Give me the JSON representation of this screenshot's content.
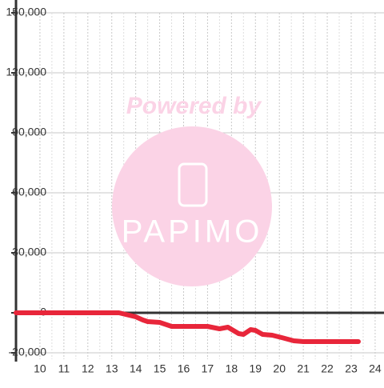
{
  "chart_data": {
    "type": "line",
    "watermark": {
      "title": "Powered by",
      "logo": "PAPIMO"
    },
    "x": [
      9,
      13.3,
      14,
      14.3,
      14.5,
      15,
      15.2,
      15.5,
      17,
      17.5,
      17.85,
      18.3,
      18.5,
      18.8,
      19,
      19.3,
      19.7,
      20.1,
      20.6,
      21,
      23.3
    ],
    "series": [
      {
        "color": "#e8263a",
        "values": [
          0,
          0,
          -2000,
          -3600,
          -4400,
          -4800,
          -5600,
          -6800,
          -6800,
          -8000,
          -7200,
          -10400,
          -10800,
          -8400,
          -8800,
          -10800,
          -11200,
          -12400,
          -14000,
          -14400,
          -14400
        ]
      }
    ],
    "xlim": [
      9,
      24.37
    ],
    "xticks": [
      10,
      11,
      12,
      13,
      14,
      15,
      16,
      17,
      18,
      19,
      20,
      21,
      22,
      23,
      24
    ],
    "ylim": [
      -20000,
      150000
    ],
    "yticks": [
      {
        "value": -20000,
        "label": "-20,000"
      },
      0,
      {
        "value": 30000,
        "label": "30,000"
      },
      {
        "value": 60000,
        "label": "60,000"
      },
      {
        "value": 90000,
        "label": "90,000"
      },
      {
        "value": 120000,
        "label": "120,000"
      },
      {
        "value": 150000,
        "label": "150,000"
      }
    ],
    "grid": true
  }
}
